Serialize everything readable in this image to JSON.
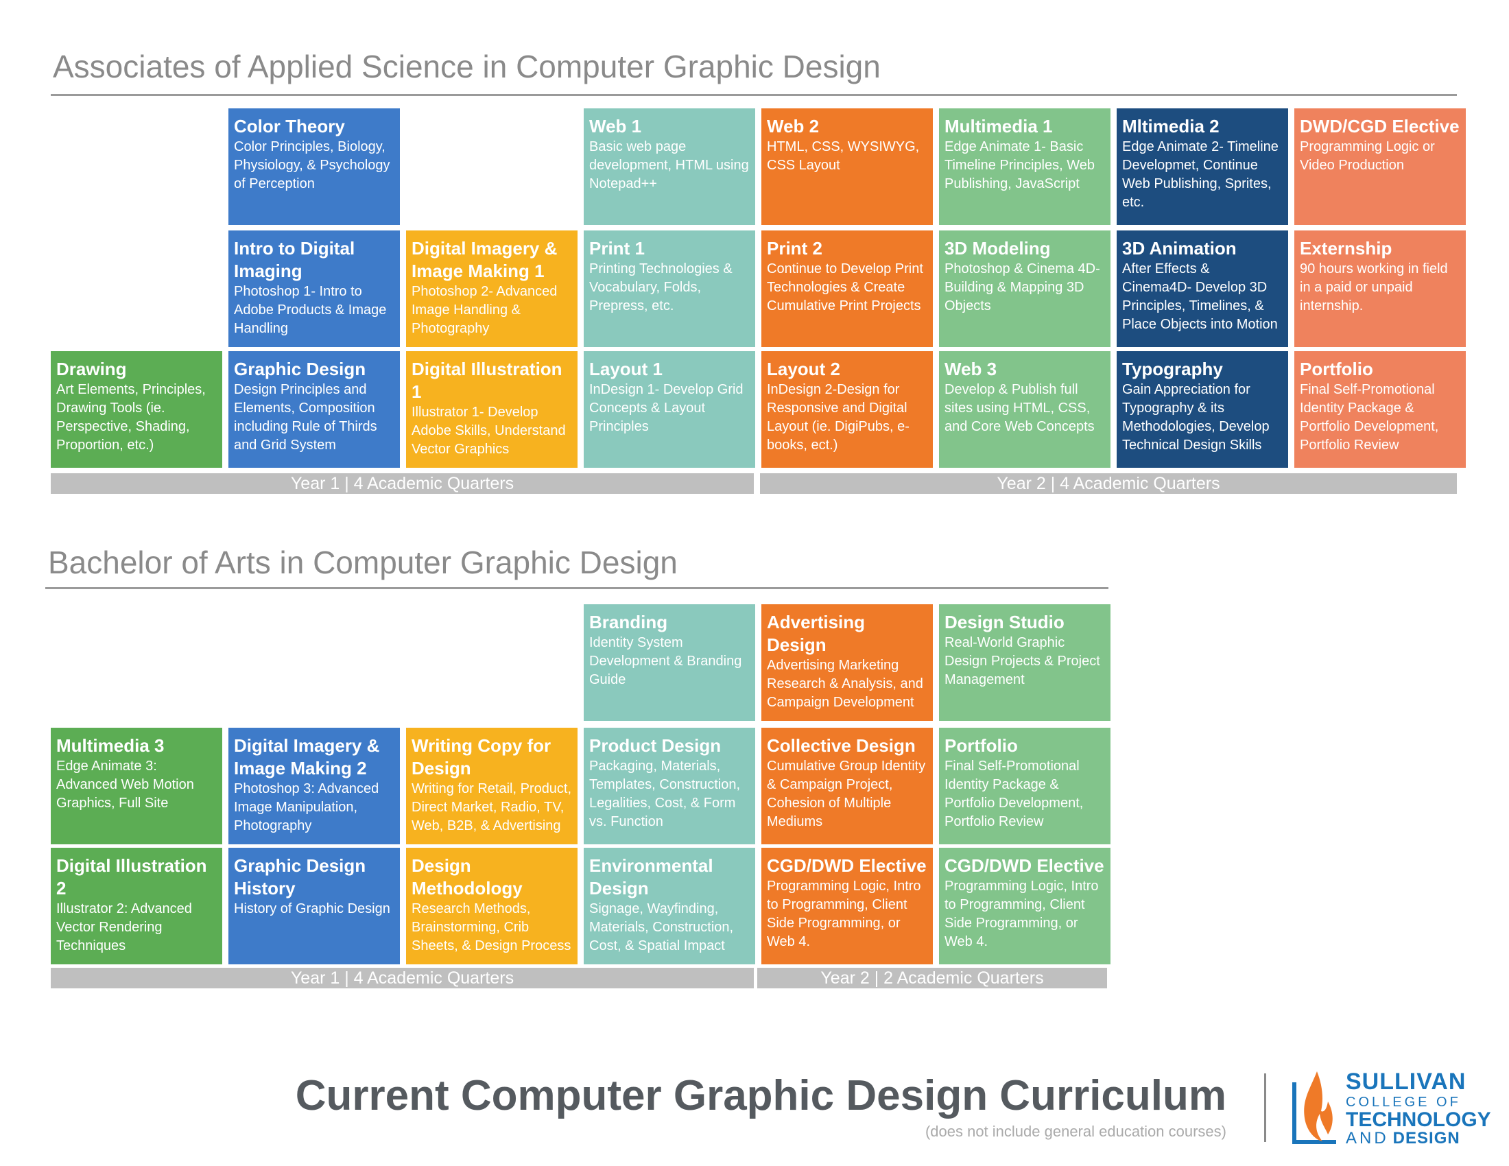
{
  "associates": {
    "title": "Associates of Applied Science in Computer Graphic Design",
    "courses": [
      {
        "col": 1,
        "row": 0,
        "color": "blue",
        "title": "Color Theory",
        "desc": "Color Principles, Biology, Physiology, & Psychology of Perception"
      },
      {
        "col": 3,
        "row": 0,
        "color": "teal",
        "title": "Web 1",
        "desc": "Basic web page development, HTML using Notepad++"
      },
      {
        "col": 4,
        "row": 0,
        "color": "orange",
        "title": "Web 2",
        "desc": "HTML, CSS, WYSIWYG, CSS Layout"
      },
      {
        "col": 5,
        "row": 0,
        "color": "green",
        "title": "Multimedia 1",
        "desc": "Edge Animate 1- Basic Timeline Principles, Web Publishing, JavaScript"
      },
      {
        "col": 6,
        "row": 0,
        "color": "navy",
        "title": "Mltimedia 2",
        "desc": "Edge Animate 2- Timeline Developmet, Continue Web Publishing, Sprites, etc."
      },
      {
        "col": 7,
        "row": 0,
        "color": "salmon",
        "title": "DWD/CGD Elective",
        "desc": "Programming Logic or Video Production"
      },
      {
        "col": 1,
        "row": 1,
        "color": "blue",
        "title": "Intro to Digital Imaging",
        "desc": "Photoshop 1- Intro to Adobe Products & Image Handling"
      },
      {
        "col": 2,
        "row": 1,
        "color": "yellow",
        "title": "Digital Imagery & Image Making 1",
        "desc": "Photoshop 2- Advanced Image Handling & Photography"
      },
      {
        "col": 3,
        "row": 1,
        "color": "teal",
        "title": "Print 1",
        "desc": "Printing Technologies & Vocabulary, Folds, Prepress, etc."
      },
      {
        "col": 4,
        "row": 1,
        "color": "orange",
        "title": "Print 2",
        "desc": "Continue to Develop Print Technologies & Create Cumulative Print Projects"
      },
      {
        "col": 5,
        "row": 1,
        "color": "green",
        "title": "3D Modeling",
        "desc": "Photoshop & Cinema 4D- Building & Mapping 3D Objects"
      },
      {
        "col": 6,
        "row": 1,
        "color": "navy",
        "title": "3D Animation",
        "desc": "After Effects & Cinema4D- Develop 3D Principles, Timelines, & Place Objects into Motion"
      },
      {
        "col": 7,
        "row": 1,
        "color": "salmon",
        "title": "Externship",
        "desc": "90 hours working in field in a paid or unpaid internship."
      },
      {
        "col": 0,
        "row": 2,
        "color": "green2",
        "title": "Drawing",
        "desc": "Art Elements, Principles, Drawing Tools (ie. Perspective, Shading, Proportion, etc.)"
      },
      {
        "col": 1,
        "row": 2,
        "color": "blue",
        "title": "Graphic Design",
        "desc": "Design Principles and Elements, Composition including Rule of Thirds and Grid System"
      },
      {
        "col": 2,
        "row": 2,
        "color": "yellow",
        "title": "Digital Illustration 1",
        "desc": "Illustrator 1- Develop Adobe Skills, Understand Vector Graphics"
      },
      {
        "col": 3,
        "row": 2,
        "color": "teal",
        "title": "Layout 1",
        "desc": "InDesign 1- Develop Grid Concepts & Layout Principles"
      },
      {
        "col": 4,
        "row": 2,
        "color": "orange",
        "title": "Layout 2",
        "desc": "InDesign 2-Design for Responsive and Digital Layout (ie. DigiPubs, e-books, ect.)"
      },
      {
        "col": 5,
        "row": 2,
        "color": "green",
        "title": "Web 3",
        "desc": "Develop & Publish full sites using HTML, CSS, and Core Web Concepts"
      },
      {
        "col": 6,
        "row": 2,
        "color": "navy",
        "title": "Typography",
        "desc": "Gain Appreciation for Typography & its Methodologies, Develop Technical Design Skills"
      },
      {
        "col": 7,
        "row": 2,
        "color": "salmon",
        "title": "Portfolio",
        "desc": "Final Self-Promotional Identity Package & Portfolio Development, Portfolio Review"
      }
    ],
    "year1_label": "Year 1 | 4 Academic Quarters",
    "year2_label": "Year 2 | 4 Academic Quarters"
  },
  "bachelor": {
    "title": "Bachelor of Arts in Computer Graphic Design",
    "courses": [
      {
        "col": 3,
        "row": 0,
        "color": "teal",
        "title": "Branding",
        "desc": "Identity System Development & Branding Guide"
      },
      {
        "col": 4,
        "row": 0,
        "color": "orange",
        "title": "Advertising Design",
        "desc": "Advertising Marketing Research & Analysis, and Campaign Development"
      },
      {
        "col": 5,
        "row": 0,
        "color": "green",
        "title": "Design Studio",
        "desc": "Real-World Graphic Design Projects & Project Management"
      },
      {
        "col": 0,
        "row": 1,
        "color": "green2",
        "title": "Multimedia 3",
        "desc": "Edge Animate 3: Advanced Web Motion Graphics, Full Site"
      },
      {
        "col": 1,
        "row": 1,
        "color": "blue",
        "title": "Digital Imagery & Image Making 2",
        "desc": "Photoshop 3: Advanced Image Manipulation, Photography"
      },
      {
        "col": 2,
        "row": 1,
        "color": "yellow",
        "title": "Writing Copy for Design",
        "desc": "Writing for Retail, Product, Direct Market, Radio, TV, Web, B2B, & Advertising"
      },
      {
        "col": 3,
        "row": 1,
        "color": "teal",
        "title": "Product Design",
        "desc": "Packaging, Materials, Templates, Construction, Legalities, Cost, & Form vs. Function"
      },
      {
        "col": 4,
        "row": 1,
        "color": "orange",
        "title": "Collective Design",
        "desc": "Cumulative Group Identity & Campaign Project, Cohesion of Multiple Mediums"
      },
      {
        "col": 5,
        "row": 1,
        "color": "green",
        "title": "Portfolio",
        "desc": "Final Self-Promotional Identity Package & Portfolio Development, Portfolio Review"
      },
      {
        "col": 0,
        "row": 2,
        "color": "green2",
        "title": "Digital Illustration 2",
        "desc": "Illustrator 2: Advanced Vector Rendering Techniques"
      },
      {
        "col": 1,
        "row": 2,
        "color": "blue",
        "title": "Graphic Design History",
        "desc": "History of Graphic Design"
      },
      {
        "col": 2,
        "row": 2,
        "color": "yellow",
        "title": "Design Methodology",
        "desc": "Research Methods, Brainstorming, Crib Sheets, & Design Process"
      },
      {
        "col": 3,
        "row": 2,
        "color": "teal",
        "title": "Environmental Design",
        "desc": "Signage, Wayfinding, Materials, Construction, Cost, & Spatial Impact"
      },
      {
        "col": 4,
        "row": 2,
        "color": "orange",
        "title": "CGD/DWD Elective",
        "desc": "Programming Logic, Intro to Programming, Client Side Programming, or Web 4."
      },
      {
        "col": 5,
        "row": 2,
        "color": "green",
        "title": "CGD/DWD Elective",
        "desc": "Programming Logic, Intro to Programming, Client Side Programming, or Web 4."
      }
    ],
    "year1_label": "Year 1 | 4 Academic Quarters",
    "year2_label": "Year 2 | 2 Academic Quarters"
  },
  "footer": {
    "title": "Current Computer Graphic Design Curriculum",
    "subtitle": "(does not include general education courses)"
  },
  "logo": {
    "line1": "SULLIVAN",
    "line2": "COLLEGE OF",
    "line3": "TECHNOLOGY",
    "line4a": "AND",
    "line4b": "DESIGN"
  },
  "colors": {
    "blue": "#3e7bc9",
    "teal": "#8ac9bd",
    "orange": "#ef7a28",
    "green": "#82c48b",
    "green2": "#5cad54",
    "navy": "#1d4d7f",
    "salmon": "#ef825d",
    "yellow": "#f7b21f",
    "bar": "#bfbfbf",
    "logo_blue": "#1a75bb",
    "flame": "#ef7a28"
  }
}
